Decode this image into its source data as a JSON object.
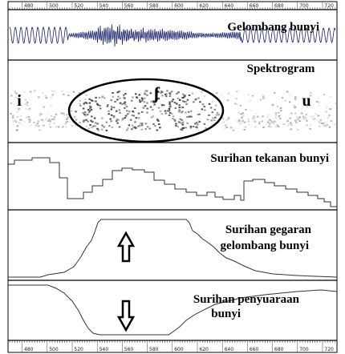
{
  "panels": [
    {
      "label": "Gelombang bunyi"
    },
    {
      "label": "Spektrogram",
      "segments": [
        "i",
        "ʃ",
        "u"
      ]
    },
    {
      "label": "Surihan tekanan bunyi"
    },
    {
      "label_lines": [
        "Surihan gegaran",
        "gelombang bunyi"
      ]
    },
    {
      "label_lines": [
        "Surihan penyuaraan",
        "bunyi"
      ]
    }
  ],
  "top_ruler": {
    "labels": [
      "480",
      "500",
      "520",
      "540",
      "560",
      "580",
      "600",
      "620",
      "640",
      "660",
      "680",
      "700",
      "720"
    ]
  },
  "bottom_ruler": {
    "labels": [
      "480",
      "500",
      "520",
      "540",
      "560",
      "580",
      "600",
      "620",
      "640",
      "660",
      "680",
      "700",
      "720"
    ]
  }
}
